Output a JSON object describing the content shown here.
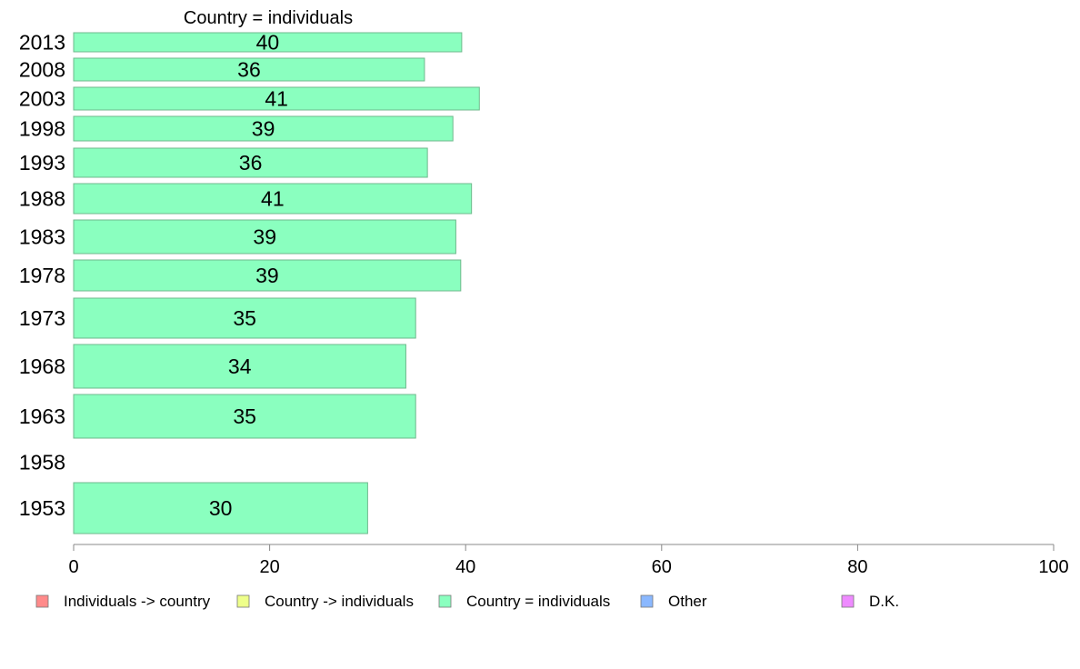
{
  "chart_data": {
    "type": "bar",
    "orientation": "horizontal",
    "title": "Country = individuals",
    "xlabel": "",
    "ylabel": "",
    "xlim": [
      0,
      100
    ],
    "xticks": [
      "0",
      "20",
      "40",
      "60",
      "80",
      "100"
    ],
    "categories": [
      "2013",
      "2008",
      "2003",
      "1998",
      "1993",
      "1988",
      "1983",
      "1978",
      "1973",
      "1968",
      "1963",
      "1958",
      "1953"
    ],
    "series": [
      {
        "name": "Country = individuals",
        "color": "#8affbf",
        "values": [
          39.6,
          35.8,
          41.4,
          38.7,
          36.1,
          40.6,
          39.0,
          39.5,
          34.9,
          33.9,
          34.9,
          null,
          30.0
        ],
        "labels": [
          "40",
          "36",
          "41",
          "39",
          "36",
          "41",
          "39",
          "39",
          "35",
          "34",
          "35",
          "",
          "30"
        ]
      }
    ],
    "legend": {
      "placement": "bottom",
      "entries": [
        {
          "label": "Individuals -> country",
          "color": "#ff8a8a"
        },
        {
          "label": "Country -> individuals",
          "color": "#eeff8a"
        },
        {
          "label": "Country = individuals",
          "color": "#8affbf"
        },
        {
          "label": "Other",
          "color": "#8ab8ff"
        },
        {
          "label": "D.K.",
          "color": "#ee8aff"
        }
      ]
    },
    "grid": false
  }
}
